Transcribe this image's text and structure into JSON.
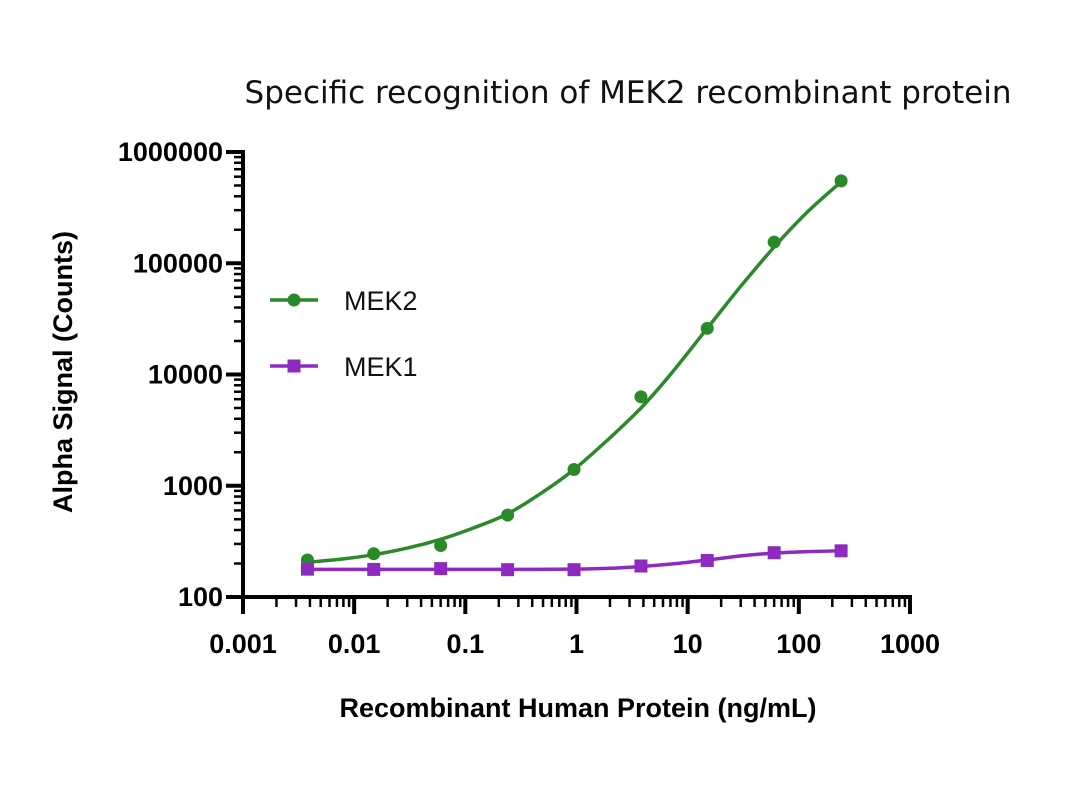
{
  "chart_data": {
    "type": "line",
    "title": "Specific recognition of MEK2 recombinant protein",
    "xlabel": "Recombinant Human Protein (ng/mL)",
    "ylabel": "Alpha Signal (Counts)",
    "xscale": "log",
    "yscale": "log",
    "xlim": [
      0.001,
      1000
    ],
    "ylim": [
      100,
      1000000
    ],
    "x_ticks": [
      0.001,
      0.01,
      0.1,
      1,
      10,
      100,
      1000
    ],
    "x_tick_labels": [
      "0.001",
      "0.01",
      "0.1",
      "1",
      "10",
      "100",
      "1000"
    ],
    "y_ticks": [
      100,
      1000,
      10000,
      100000,
      1000000
    ],
    "y_tick_labels": [
      "100",
      "1000",
      "10000",
      "100000",
      "1000000"
    ],
    "grid": false,
    "legend_position": "upper-left",
    "series": [
      {
        "name": "MEK2",
        "color": "#2a8a2a",
        "marker": "circle",
        "x": [
          0.0038,
          0.015,
          0.06,
          0.24,
          0.95,
          3.8,
          15,
          60,
          240
        ],
        "y": [
          215,
          245,
          290,
          545,
          1400,
          6300,
          26000,
          155000,
          550000
        ],
        "fit_curve": [
          [
            0.0038,
            205
          ],
          [
            0.008,
            220
          ],
          [
            0.015,
            240
          ],
          [
            0.03,
            275
          ],
          [
            0.06,
            330
          ],
          [
            0.12,
            420
          ],
          [
            0.24,
            560
          ],
          [
            0.5,
            880
          ],
          [
            0.95,
            1400
          ],
          [
            2,
            2700
          ],
          [
            3.8,
            5000
          ],
          [
            7,
            10000
          ],
          [
            15,
            26000
          ],
          [
            30,
            62000
          ],
          [
            60,
            140000
          ],
          [
            120,
            290000
          ],
          [
            240,
            540000
          ]
        ]
      },
      {
        "name": "MEK1",
        "color": "#8e2ac0",
        "marker": "square",
        "x": [
          0.0038,
          0.015,
          0.06,
          0.24,
          0.95,
          3.8,
          15,
          60,
          240
        ],
        "y": [
          178,
          177,
          180,
          176,
          176,
          190,
          213,
          250,
          260
        ],
        "fit_curve": [
          [
            0.0038,
            177
          ],
          [
            0.015,
            177
          ],
          [
            0.06,
            177
          ],
          [
            0.24,
            177
          ],
          [
            0.95,
            178
          ],
          [
            2,
            181
          ],
          [
            3.8,
            188
          ],
          [
            8,
            200
          ],
          [
            15,
            215
          ],
          [
            30,
            234
          ],
          [
            60,
            248
          ],
          [
            120,
            256
          ],
          [
            240,
            260
          ]
        ]
      }
    ]
  }
}
